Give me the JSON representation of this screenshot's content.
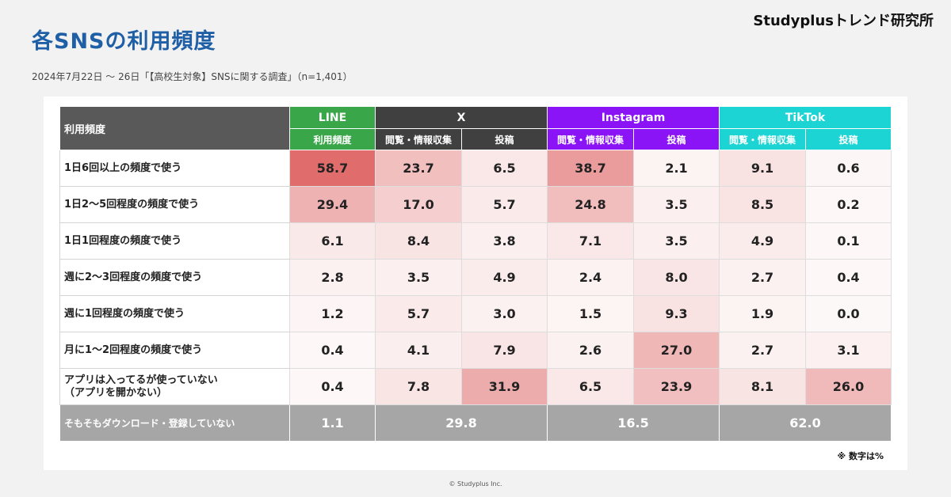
{
  "header": {
    "title": "各SNSの利用頻度",
    "brand": "Studyplusトレンド研究所",
    "subtitle": "2024年7月22日 〜 26日「【高校生対象】SNSに関する調査」（n=1,401）"
  },
  "footer": {
    "note": "※ 数字は%",
    "copyright": "© Studyplus Inc."
  },
  "colors": {
    "LINE": "#3aa64a",
    "X": "#404040",
    "Instagram": "#8a14f5",
    "TikTok": "#1dd4d4",
    "header_gray": "#595959",
    "total_gray": "#a6a6a6",
    "heat_max": "#e06c6c"
  },
  "chart_data": {
    "type": "table",
    "corner_label": "利用頻度",
    "platforms": [
      {
        "name": "LINE",
        "columns": [
          "利用頻度"
        ]
      },
      {
        "name": "X",
        "columns": [
          "閲覧・情報収集",
          "投稿"
        ]
      },
      {
        "name": "Instagram",
        "columns": [
          "閲覧・情報収集",
          "投稿"
        ]
      },
      {
        "name": "TikTok",
        "columns": [
          "閲覧・情報収集",
          "投稿"
        ]
      }
    ],
    "rows": [
      {
        "label": "1日6回以上の頻度で使う",
        "values": [
          58.7,
          23.7,
          6.5,
          38.7,
          2.1,
          9.1,
          0.6
        ]
      },
      {
        "label": "1日2〜5回程度の頻度で使う",
        "values": [
          29.4,
          17.0,
          5.7,
          24.8,
          3.5,
          8.5,
          0.2
        ]
      },
      {
        "label": "1日1回程度の頻度で使う",
        "values": [
          6.1,
          8.4,
          3.8,
          7.1,
          3.5,
          4.9,
          0.1
        ]
      },
      {
        "label": "週に2〜3回程度の頻度で使う",
        "values": [
          2.8,
          3.5,
          4.9,
          2.4,
          8.0,
          2.7,
          0.4
        ]
      },
      {
        "label": "週に1回程度の頻度で使う",
        "values": [
          1.2,
          5.7,
          3.0,
          1.5,
          9.3,
          1.9,
          0.0
        ]
      },
      {
        "label": "月に1〜2回程度の頻度で使う",
        "values": [
          0.4,
          4.1,
          7.9,
          2.6,
          27.0,
          2.7,
          3.1
        ]
      },
      {
        "label": "アプリは入ってるが使っていない\n（アプリを開かない）",
        "values": [
          0.4,
          7.8,
          31.9,
          6.5,
          23.9,
          8.1,
          26.0
        ]
      }
    ],
    "total_row": {
      "label": "そもそもダウンロード・登録していない",
      "values": [
        1.1,
        29.8,
        16.5,
        62.0
      ]
    }
  }
}
